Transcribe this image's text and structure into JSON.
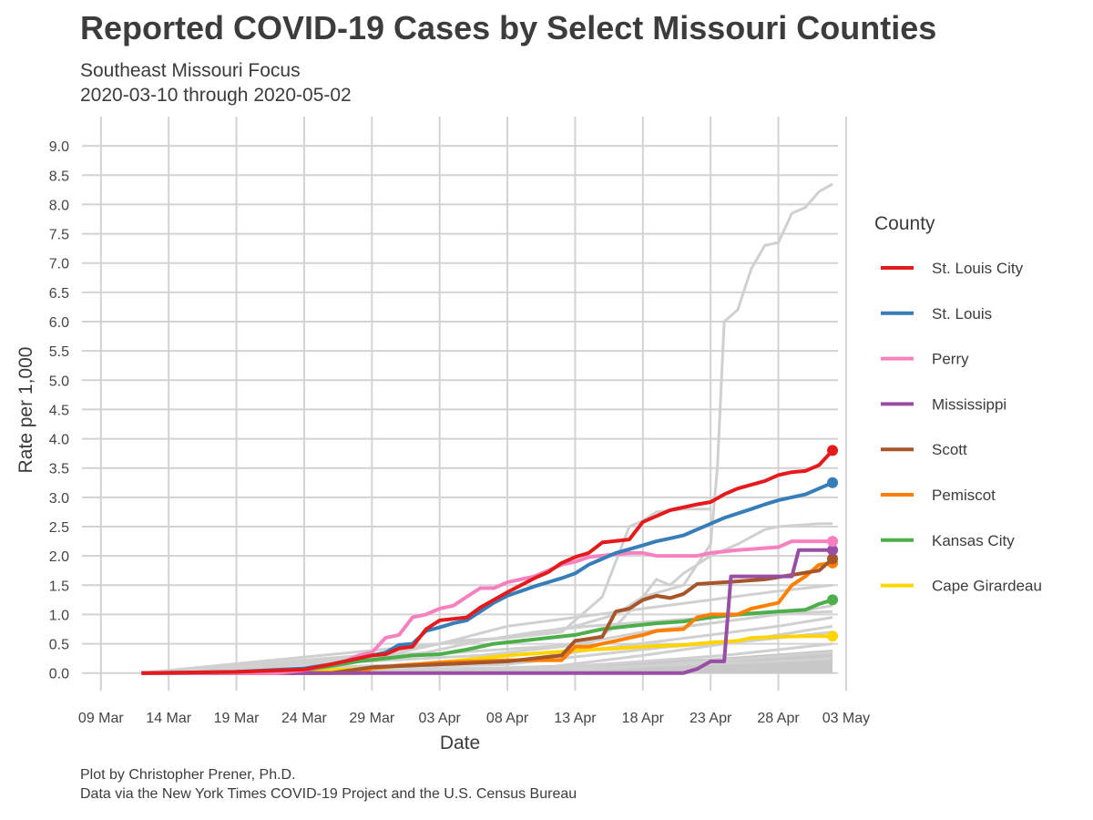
{
  "header": {
    "title": "Reported COVID-19 Cases by Select Missouri Counties",
    "subtitle_line1": "Southeast Missouri Focus",
    "subtitle_line2": "2020-03-10 through 2020-05-02"
  },
  "footer": {
    "caption_line1": "Plot by Christopher Prener, Ph.D.",
    "caption_line2": "Data via the New York Times COVID-19 Project and the U.S. Census Bureau"
  },
  "chart_data": {
    "type": "line",
    "xlabel": "Date",
    "ylabel": "Rate per 1,000",
    "xlim_days": [
      -1.4,
      54.4
    ],
    "x_origin": "2020-03-09",
    "ylim": [
      -0.3,
      9.5
    ],
    "x_ticks": [
      {
        "day": 0,
        "label": "09 Mar"
      },
      {
        "day": 5,
        "label": "14 Mar"
      },
      {
        "day": 10,
        "label": "19 Mar"
      },
      {
        "day": 15,
        "label": "24 Mar"
      },
      {
        "day": 20,
        "label": "29 Mar"
      },
      {
        "day": 25,
        "label": "03 Apr"
      },
      {
        "day": 30,
        "label": "08 Apr"
      },
      {
        "day": 35,
        "label": "13 Apr"
      },
      {
        "day": 40,
        "label": "18 Apr"
      },
      {
        "day": 45,
        "label": "23 Apr"
      },
      {
        "day": 50,
        "label": "28 Apr"
      },
      {
        "day": 55,
        "label": "03 May"
      }
    ],
    "y_ticks": [
      "0.0",
      "0.5",
      "1.0",
      "1.5",
      "2.0",
      "2.5",
      "3.0",
      "3.5",
      "4.0",
      "4.5",
      "5.0",
      "5.5",
      "6.0",
      "6.5",
      "7.0",
      "7.5",
      "8.0",
      "8.5",
      "9.0"
    ],
    "grid": true,
    "legend_title": "County",
    "legend_position": "right",
    "series": [
      {
        "name": "St. Louis City",
        "color": "#e41a1c",
        "points": [
          [
            3,
            0
          ],
          [
            10,
            0.02
          ],
          [
            15,
            0.06
          ],
          [
            17,
            0.15
          ],
          [
            20,
            0.3
          ],
          [
            21,
            0.32
          ],
          [
            22,
            0.42
          ],
          [
            23,
            0.45
          ],
          [
            24,
            0.75
          ],
          [
            25,
            0.9
          ],
          [
            27,
            0.95
          ],
          [
            28,
            1.12
          ],
          [
            29,
            1.25
          ],
          [
            30,
            1.38
          ],
          [
            31,
            1.5
          ],
          [
            32,
            1.62
          ],
          [
            33,
            1.72
          ],
          [
            34,
            1.88
          ],
          [
            35,
            1.98
          ],
          [
            36,
            2.05
          ],
          [
            37,
            2.23
          ],
          [
            39,
            2.28
          ],
          [
            40,
            2.58
          ],
          [
            41,
            2.68
          ],
          [
            42,
            2.78
          ],
          [
            44,
            2.88
          ],
          [
            45,
            2.92
          ],
          [
            46,
            3.05
          ],
          [
            47,
            3.15
          ],
          [
            49,
            3.28
          ],
          [
            50,
            3.38
          ],
          [
            51,
            3.43
          ],
          [
            52,
            3.45
          ],
          [
            53,
            3.55
          ],
          [
            54,
            3.8
          ]
        ]
      },
      {
        "name": "St. Louis",
        "color": "#377eb8",
        "points": [
          [
            3,
            0
          ],
          [
            10,
            0.02
          ],
          [
            15,
            0.08
          ],
          [
            17,
            0.15
          ],
          [
            19,
            0.25
          ],
          [
            20,
            0.3
          ],
          [
            21,
            0.35
          ],
          [
            22,
            0.48
          ],
          [
            23,
            0.5
          ],
          [
            24,
            0.72
          ],
          [
            25,
            0.78
          ],
          [
            26,
            0.85
          ],
          [
            27,
            0.9
          ],
          [
            28,
            1.05
          ],
          [
            29,
            1.2
          ],
          [
            30,
            1.32
          ],
          [
            32,
            1.48
          ],
          [
            34,
            1.62
          ],
          [
            35,
            1.7
          ],
          [
            36,
            1.85
          ],
          [
            37,
            1.95
          ],
          [
            38,
            2.05
          ],
          [
            40,
            2.18
          ],
          [
            41,
            2.25
          ],
          [
            42,
            2.3
          ],
          [
            43,
            2.35
          ],
          [
            44,
            2.45
          ],
          [
            45,
            2.55
          ],
          [
            46,
            2.65
          ],
          [
            48,
            2.8
          ],
          [
            49,
            2.88
          ],
          [
            50,
            2.95
          ],
          [
            52,
            3.05
          ],
          [
            53,
            3.15
          ],
          [
            54,
            3.25
          ]
        ]
      },
      {
        "name": "Perry",
        "color": "#f781bf",
        "points": [
          [
            3,
            0
          ],
          [
            13,
            0
          ],
          [
            15,
            0.05
          ],
          [
            18,
            0.2
          ],
          [
            19,
            0.3
          ],
          [
            20,
            0.35
          ],
          [
            21,
            0.6
          ],
          [
            22,
            0.65
          ],
          [
            23,
            0.95
          ],
          [
            24,
            1.0
          ],
          [
            25,
            1.1
          ],
          [
            26,
            1.15
          ],
          [
            27,
            1.3
          ],
          [
            28,
            1.45
          ],
          [
            29,
            1.45
          ],
          [
            30,
            1.55
          ],
          [
            32,
            1.65
          ],
          [
            33,
            1.75
          ],
          [
            34,
            1.85
          ],
          [
            35,
            1.9
          ],
          [
            36,
            1.98
          ],
          [
            39,
            2.05
          ],
          [
            40,
            2.05
          ],
          [
            41,
            2.0
          ],
          [
            44,
            2.0
          ],
          [
            45,
            2.05
          ],
          [
            47,
            2.1
          ],
          [
            50,
            2.15
          ],
          [
            51,
            2.25
          ],
          [
            54,
            2.25
          ]
        ]
      },
      {
        "name": "Mississippi",
        "color": "#984ea3",
        "points": [
          [
            3,
            0
          ],
          [
            42,
            0
          ],
          [
            43,
            0
          ],
          [
            44,
            0.07
          ],
          [
            45,
            0.2
          ],
          [
            46,
            0.2
          ],
          [
            46.5,
            1.65
          ],
          [
            51,
            1.65
          ],
          [
            51.5,
            2.1
          ],
          [
            54,
            2.1
          ]
        ]
      },
      {
        "name": "Scott",
        "color": "#a65628",
        "points": [
          [
            3,
            0
          ],
          [
            17,
            0
          ],
          [
            20,
            0.1
          ],
          [
            23,
            0.13
          ],
          [
            25,
            0.15
          ],
          [
            30,
            0.2
          ],
          [
            34,
            0.3
          ],
          [
            35,
            0.55
          ],
          [
            37,
            0.62
          ],
          [
            38,
            1.05
          ],
          [
            39,
            1.1
          ],
          [
            40,
            1.25
          ],
          [
            41,
            1.32
          ],
          [
            42,
            1.28
          ],
          [
            43,
            1.35
          ],
          [
            44,
            1.52
          ],
          [
            46,
            1.55
          ],
          [
            49,
            1.6
          ],
          [
            53,
            1.75
          ],
          [
            54,
            1.95
          ]
        ]
      },
      {
        "name": "Pemiscot",
        "color": "#ff7f00",
        "points": [
          [
            3,
            0
          ],
          [
            19,
            0
          ],
          [
            20,
            0.08
          ],
          [
            21,
            0.1
          ],
          [
            22,
            0.13
          ],
          [
            25,
            0.18
          ],
          [
            28,
            0.2
          ],
          [
            30,
            0.22
          ],
          [
            34,
            0.22
          ],
          [
            35,
            0.45
          ],
          [
            36,
            0.45
          ],
          [
            37,
            0.5
          ],
          [
            38,
            0.55
          ],
          [
            39,
            0.6
          ],
          [
            40,
            0.65
          ],
          [
            41,
            0.72
          ],
          [
            43,
            0.75
          ],
          [
            44,
            0.95
          ],
          [
            45,
            1.0
          ],
          [
            47,
            1.0
          ],
          [
            48,
            1.1
          ],
          [
            49,
            1.15
          ],
          [
            50,
            1.2
          ],
          [
            51,
            1.5
          ],
          [
            52,
            1.65
          ],
          [
            53,
            1.85
          ],
          [
            54,
            1.88
          ]
        ]
      },
      {
        "name": "Kansas City",
        "color": "#4daf4a",
        "points": [
          [
            3,
            0
          ],
          [
            10,
            0.01
          ],
          [
            15,
            0.05
          ],
          [
            17,
            0.12
          ],
          [
            19,
            0.2
          ],
          [
            21,
            0.25
          ],
          [
            23,
            0.3
          ],
          [
            25,
            0.32
          ],
          [
            27,
            0.4
          ],
          [
            29,
            0.5
          ],
          [
            31,
            0.55
          ],
          [
            33,
            0.6
          ],
          [
            35,
            0.65
          ],
          [
            37,
            0.75
          ],
          [
            39,
            0.8
          ],
          [
            41,
            0.85
          ],
          [
            43,
            0.88
          ],
          [
            45,
            0.95
          ],
          [
            47,
            1.0
          ],
          [
            50,
            1.05
          ],
          [
            52,
            1.08
          ],
          [
            53,
            1.18
          ],
          [
            54,
            1.25
          ]
        ]
      },
      {
        "name": "Cape Girardeau",
        "color": "#ffd400",
        "points": [
          [
            3,
            0
          ],
          [
            12,
            0
          ],
          [
            17,
            0.05
          ],
          [
            20,
            0.08
          ],
          [
            22,
            0.12
          ],
          [
            25,
            0.18
          ],
          [
            28,
            0.25
          ],
          [
            30,
            0.3
          ],
          [
            33,
            0.35
          ],
          [
            36,
            0.4
          ],
          [
            38,
            0.42
          ],
          [
            40,
            0.45
          ],
          [
            43,
            0.48
          ],
          [
            45,
            0.52
          ],
          [
            47,
            0.55
          ],
          [
            48,
            0.6
          ],
          [
            50,
            0.62
          ],
          [
            52,
            0.63
          ],
          [
            54,
            0.63
          ]
        ]
      }
    ],
    "background_series": [
      [
        [
          3,
          0
        ],
        [
          20,
          0.3
        ],
        [
          25,
          0.5
        ],
        [
          30,
          0.6
        ],
        [
          35,
          0.8
        ],
        [
          38,
          1.0
        ],
        [
          40,
          1.3
        ],
        [
          43,
          1.5
        ],
        [
          45,
          2.2
        ],
        [
          45.5,
          3.5
        ],
        [
          46,
          6.0
        ],
        [
          47,
          6.2
        ],
        [
          48,
          6.9
        ],
        [
          49,
          7.3
        ],
        [
          50,
          7.35
        ],
        [
          51,
          7.85
        ],
        [
          52,
          7.95
        ],
        [
          53,
          8.22
        ],
        [
          54,
          8.35
        ]
      ],
      [
        [
          3,
          0
        ],
        [
          22,
          0.35
        ],
        [
          26,
          0.55
        ],
        [
          30,
          0.6
        ],
        [
          34,
          0.7
        ],
        [
          37,
          1.3
        ],
        [
          39,
          2.5
        ],
        [
          40,
          2.6
        ],
        [
          41,
          2.75
        ],
        [
          43,
          2.8
        ],
        [
          45,
          2.8
        ]
      ],
      [
        [
          3,
          0
        ],
        [
          36,
          0.5
        ],
        [
          38,
          0.8
        ],
        [
          40,
          1.3
        ],
        [
          41,
          1.6
        ],
        [
          42,
          1.5
        ],
        [
          43,
          1.7
        ],
        [
          45,
          2.0
        ],
        [
          47,
          2.2
        ],
        [
          49,
          2.45
        ],
        [
          50,
          2.5
        ],
        [
          53,
          2.55
        ],
        [
          54,
          2.55
        ]
      ],
      [
        [
          3,
          0
        ],
        [
          25,
          0.5
        ],
        [
          30,
          0.8
        ],
        [
          35,
          0.95
        ],
        [
          40,
          1.1
        ],
        [
          45,
          1.25
        ],
        [
          50,
          1.4
        ],
        [
          54,
          1.5
        ]
      ],
      [
        [
          3,
          0
        ],
        [
          28,
          0.3
        ],
        [
          34,
          0.45
        ],
        [
          40,
          0.7
        ],
        [
          45,
          0.85
        ],
        [
          50,
          1.0
        ],
        [
          54,
          1.15
        ]
      ],
      [
        [
          3,
          0
        ],
        [
          30,
          0.2
        ],
        [
          38,
          0.45
        ],
        [
          45,
          0.65
        ],
        [
          50,
          0.8
        ],
        [
          54,
          0.95
        ]
      ],
      [
        [
          3,
          0
        ],
        [
          24,
          0.35
        ],
        [
          28,
          0.55
        ],
        [
          32,
          0.7
        ],
        [
          36,
          0.8
        ],
        [
          42,
          0.9
        ],
        [
          48,
          1.0
        ],
        [
          54,
          1.05
        ]
      ],
      [
        [
          3,
          0
        ],
        [
          33,
          0.1
        ],
        [
          40,
          0.3
        ],
        [
          46,
          0.5
        ],
        [
          50,
          0.65
        ],
        [
          54,
          0.8
        ]
      ],
      [
        [
          3,
          0
        ],
        [
          30,
          0.15
        ],
        [
          36,
          0.3
        ],
        [
          42,
          0.45
        ],
        [
          48,
          0.55
        ],
        [
          54,
          0.7
        ]
      ],
      [
        [
          3,
          0
        ],
        [
          34,
          0.1
        ],
        [
          40,
          0.2
        ],
        [
          46,
          0.3
        ],
        [
          50,
          0.4
        ],
        [
          54,
          0.5
        ]
      ],
      [
        [
          3,
          0
        ],
        [
          36,
          0.05
        ],
        [
          42,
          0.15
        ],
        [
          48,
          0.25
        ],
        [
          54,
          0.35
        ]
      ],
      [
        [
          3,
          0
        ],
        [
          30,
          0.05
        ],
        [
          40,
          0.12
        ],
        [
          50,
          0.2
        ],
        [
          54,
          0.25
        ]
      ]
    ]
  }
}
